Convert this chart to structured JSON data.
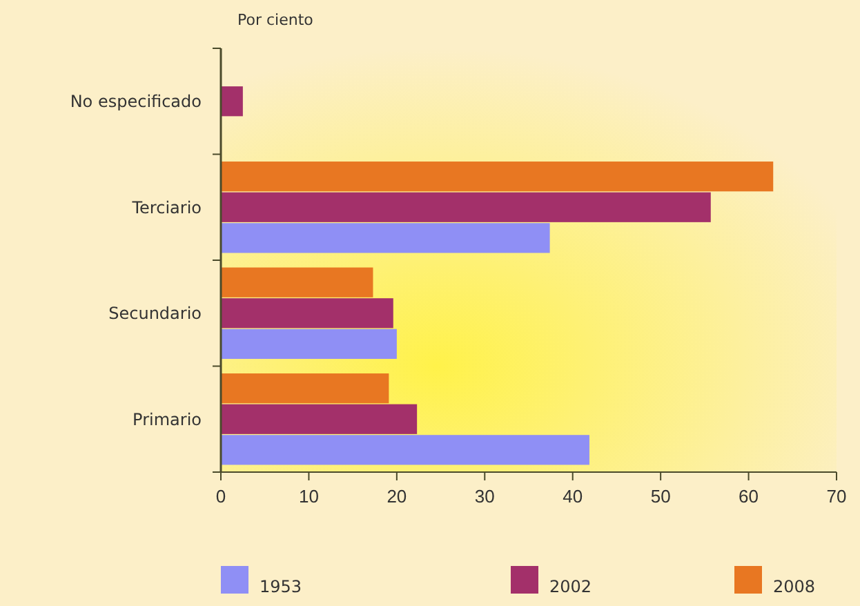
{
  "chart_data": {
    "type": "bar",
    "orientation": "horizontal",
    "ylabel": "Por ciento",
    "categories": [
      "No especificado",
      "Terciario",
      "Secundario",
      "Primario"
    ],
    "series": [
      {
        "name": "2008",
        "color": "#e87722",
        "values": [
          null,
          62.8,
          17.3,
          19.1
        ]
      },
      {
        "name": "2002",
        "color": "#a3306a",
        "values": [
          2.5,
          55.7,
          19.6,
          22.3
        ]
      },
      {
        "name": "1953",
        "color": "#8f8ff5",
        "values": [
          null,
          37.4,
          20.0,
          41.9
        ]
      }
    ],
    "xlim": [
      0,
      70
    ],
    "xticks": [
      0,
      10,
      20,
      30,
      40,
      50,
      60,
      70
    ],
    "grid": false,
    "legend": "bottom"
  }
}
